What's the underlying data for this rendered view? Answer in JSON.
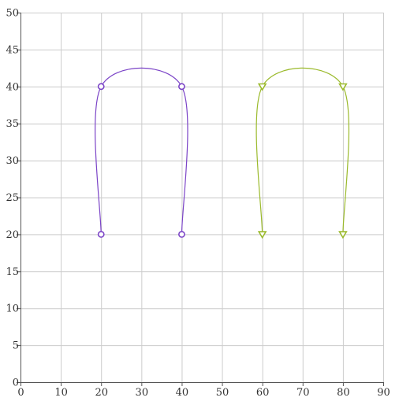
{
  "chart_data": {
    "type": "line",
    "title": "",
    "xlabel": "",
    "ylabel": "",
    "xlim": [
      0,
      90
    ],
    "ylim": [
      0,
      50
    ],
    "x_ticks": [
      0,
      10,
      20,
      30,
      40,
      50,
      60,
      70,
      80,
      90
    ],
    "y_ticks": [
      0,
      5,
      10,
      15,
      20,
      25,
      30,
      35,
      40,
      45,
      50
    ],
    "x_tick_labels": [
      "0",
      "10",
      "20",
      "30",
      "40",
      "50",
      "60",
      "70",
      "80",
      "90"
    ],
    "y_tick_labels": [
      "0",
      "5",
      "10",
      "15",
      "20",
      "25",
      "30",
      "35",
      "40",
      "45",
      "50"
    ],
    "grid": true,
    "legend": "none",
    "curve": "smooth",
    "series": [
      {
        "color": "#7b44c7",
        "marker": "circle",
        "points": [
          [
            20,
            20
          ],
          [
            20,
            40
          ],
          [
            40,
            40
          ],
          [
            40,
            20
          ]
        ]
      },
      {
        "color": "#9bba2c",
        "marker": "triangle-down",
        "points": [
          [
            60,
            20
          ],
          [
            60,
            40
          ],
          [
            80,
            40
          ],
          [
            80,
            20
          ]
        ]
      }
    ],
    "grid_color": "#cccccc",
    "axis_color": "#555555"
  }
}
